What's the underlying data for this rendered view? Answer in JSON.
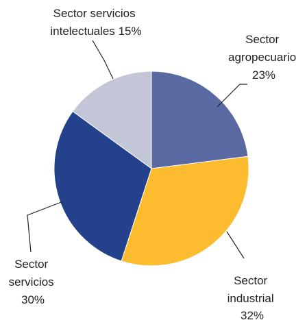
{
  "chart_data": {
    "type": "pie",
    "slices": [
      {
        "label": "Sector agropecuario",
        "value": 23,
        "value_label": "23%",
        "color": "#5b69a3"
      },
      {
        "label": "Sector industrial",
        "value": 32,
        "value_label": "32%",
        "color": "#fdbb30"
      },
      {
        "label": "Sector servicios",
        "value": 30,
        "value_label": "30%",
        "color": "#24418c"
      },
      {
        "label": "Sector servicios intelectuales",
        "value": 15,
        "value_label": "15%",
        "color": "#c3c6d7"
      }
    ],
    "labels": {
      "agro": [
        "Sector",
        "agropecuario",
        "23%"
      ],
      "industrial": [
        "Sector",
        "industrial",
        "32%"
      ],
      "servicios": [
        "Sector",
        "servicios",
        "30%"
      ],
      "intelectuales": [
        "Sector servicios",
        "intelectuales 15%"
      ]
    },
    "start_angle": "12 o'clock",
    "direction": "clockwise",
    "legend": "none"
  }
}
